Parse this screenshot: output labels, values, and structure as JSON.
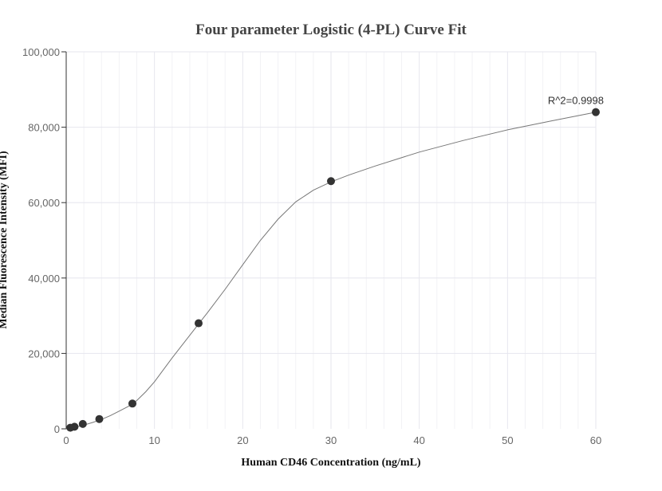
{
  "chart_data": {
    "type": "scatter",
    "title": "Four parameter Logistic (4-PL) Curve Fit",
    "xlabel": "Human CD46 Concentration (ng/mL)",
    "ylabel": "Median Fluorescence Intensity (MFI)",
    "xlim": [
      0,
      60
    ],
    "ylim": [
      0,
      100000
    ],
    "x_ticks": [
      "0",
      "10",
      "20",
      "30",
      "40",
      "50",
      "60"
    ],
    "y_ticks": [
      "0",
      "20,000",
      "40,000",
      "60,000",
      "80,000",
      "100,000"
    ],
    "grid": true,
    "points": [
      {
        "x": 0.47,
        "y": 300
      },
      {
        "x": 0.94,
        "y": 550
      },
      {
        "x": 1.88,
        "y": 1300
      },
      {
        "x": 3.75,
        "y": 2600
      },
      {
        "x": 7.5,
        "y": 6700
      },
      {
        "x": 15,
        "y": 28000
      },
      {
        "x": 30,
        "y": 65700
      },
      {
        "x": 60,
        "y": 84000
      }
    ],
    "fit_curve": {
      "x": [
        0,
        1,
        2,
        3,
        4,
        5,
        6,
        7,
        8,
        9,
        10,
        12,
        14,
        16,
        18,
        20,
        22,
        24,
        26,
        28,
        30,
        32,
        35,
        40,
        45,
        50,
        55,
        60
      ],
      "y": [
        0,
        400,
        1000,
        1700,
        2500,
        3500,
        4700,
        5900,
        7500,
        9800,
        12500,
        18800,
        24800,
        30800,
        37000,
        43500,
        50000,
        55600,
        60200,
        63300,
        65500,
        67300,
        69700,
        73400,
        76500,
        79300,
        81700,
        84000
      ]
    },
    "annotations": [
      {
        "text": "R^2=0.9998",
        "x": 60,
        "y": 84000
      }
    ],
    "colors": {
      "point": "#333333",
      "curve": "#777777",
      "grid": "#e6e6ee"
    }
  }
}
